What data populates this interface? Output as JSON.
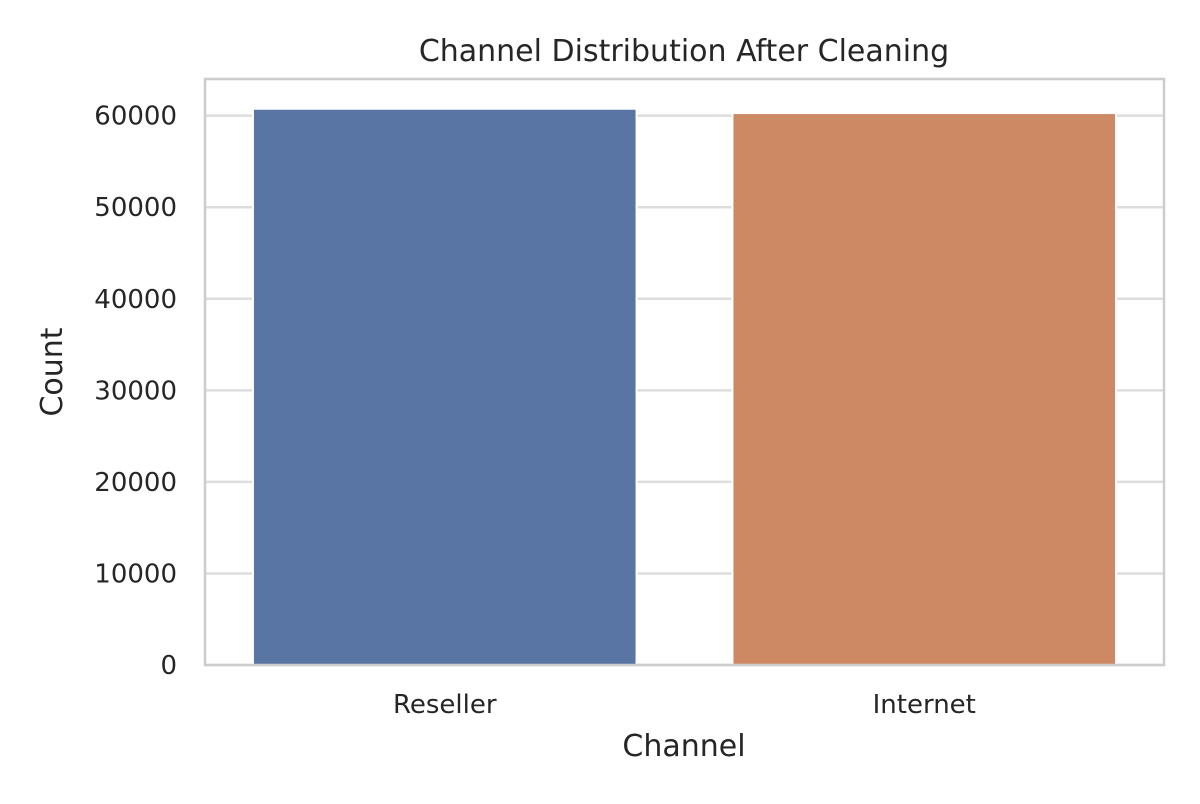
{
  "chart_data": {
    "type": "bar",
    "title": "Channel Distribution After Cleaning",
    "xlabel": "Channel",
    "ylabel": "Count",
    "categories": [
      "Reseller",
      "Internet"
    ],
    "values": [
      60750,
      60280
    ],
    "colors": [
      "#5975a4",
      "#cc8963"
    ],
    "ylim": [
      0,
      64000
    ],
    "yticks": [
      0,
      10000,
      20000,
      30000,
      40000,
      50000,
      60000
    ],
    "grid": "horizontal",
    "style_colors": {
      "grid": "#dddddd",
      "frame": "#cccccc",
      "text": "#262626"
    }
  }
}
